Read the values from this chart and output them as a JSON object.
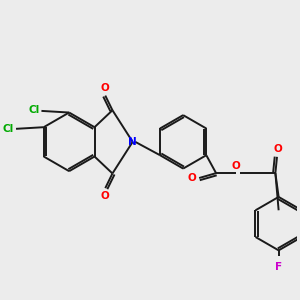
{
  "background_color": "#ececec",
  "bond_color": "#1a1a1a",
  "atom_colors": {
    "O": "#ff0000",
    "N": "#0000ff",
    "Cl": "#00aa00",
    "F": "#cc00cc"
  },
  "figsize": [
    3.0,
    3.0
  ],
  "dpi": 100
}
